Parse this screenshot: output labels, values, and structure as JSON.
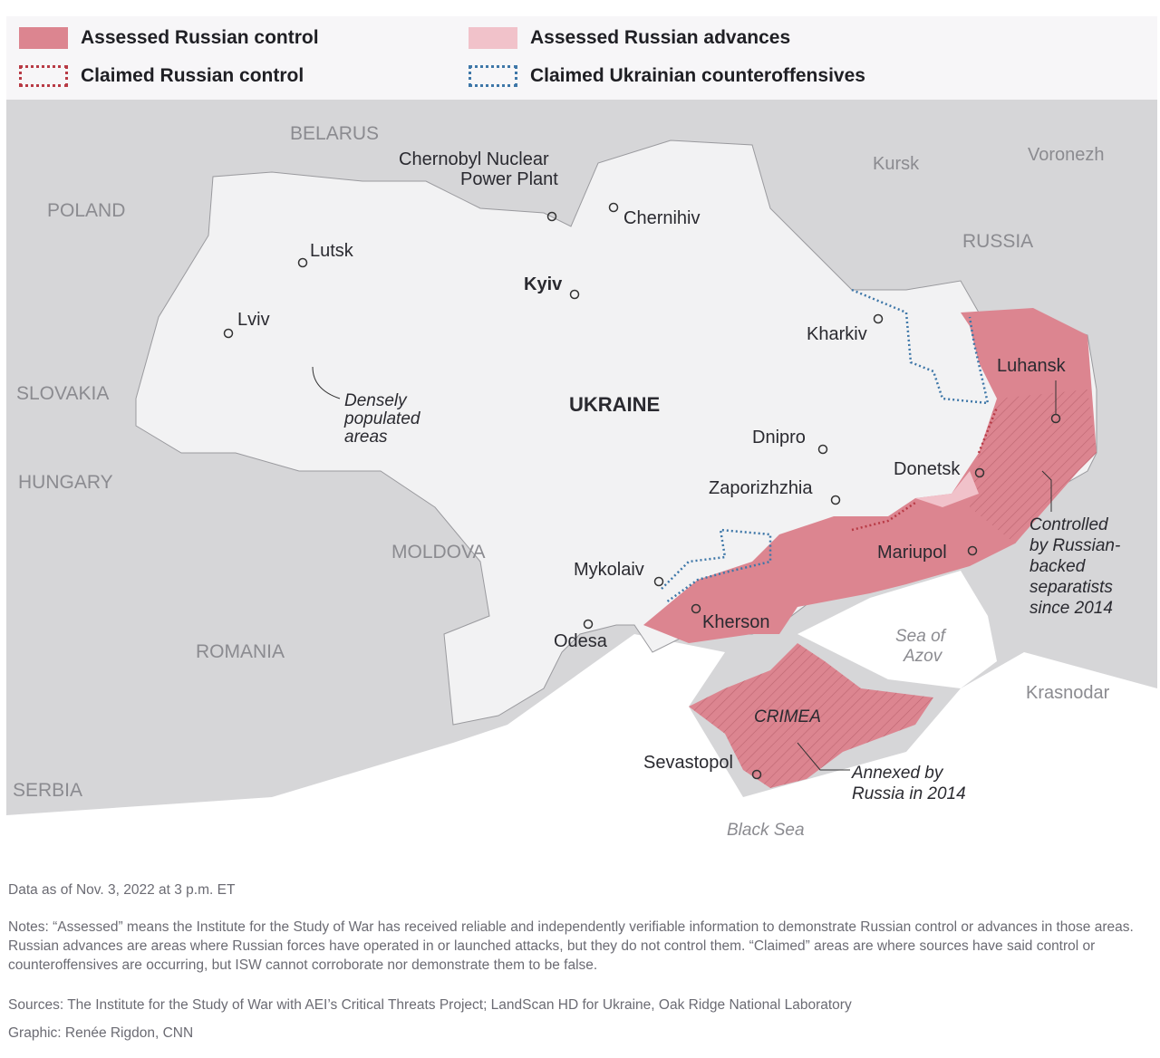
{
  "legend": [
    {
      "label": "Assessed Russian control",
      "color": "#dc8590",
      "style": "solid"
    },
    {
      "label": "Assessed Russian advances",
      "color": "#f1c2ca",
      "style": "solid"
    },
    {
      "label": "Claimed Russian control",
      "color": "#b83a45",
      "style": "dotted"
    },
    {
      "label": "Claimed Ukrainian counteroffensives",
      "color": "#3e77a8",
      "style": "dotted"
    }
  ],
  "map": {
    "countries": {
      "belarus": "BELARUS",
      "poland": "POLAND",
      "russia": "RUSSIA",
      "slovakia": "SLOVAKIA",
      "hungary": "HUNGARY",
      "moldova": "MOLDOVA",
      "romania": "ROMANIA",
      "serbia": "SERBIA",
      "ukraine": "UKRAINE"
    },
    "cities": {
      "chernobyl": "Chernobyl Nuclear",
      "chernobyl2": "Power Plant",
      "chernihiv": "Chernihiv",
      "kursk": "Kursk",
      "voronezh": "Voronezh",
      "lutsk": "Lutsk",
      "kyiv": "Kyiv",
      "lviv": "Lviv",
      "kharkiv": "Kharkiv",
      "luhansk": "Luhansk",
      "dnipro": "Dnipro",
      "donetsk": "Donetsk",
      "zaporizhzhia": "Zaporizhzhia",
      "mariupol": "Mariupol",
      "mykolaiv": "Mykolaiv",
      "kherson": "Kherson",
      "odesa": "Odesa",
      "sevastopol": "Sevastopol",
      "krasnodar": "Krasnodar"
    },
    "annotations": {
      "densely1": "Densely",
      "densely2": "populated",
      "densely3": "areas",
      "ctrl1": "Controlled",
      "ctrl2": "by Russian-",
      "ctrl3": "backed",
      "ctrl4": "separatists",
      "ctrl5": "since 2014",
      "annex1": "Annexed by",
      "annex2": "Russia in 2014",
      "crimea": "CRIMEA"
    },
    "water": {
      "azov1": "Sea of",
      "azov2": "Azov",
      "black": "Black Sea"
    }
  },
  "footer": {
    "date": "Data as of Nov. 3, 2022 at 3 p.m. ET",
    "notes": "Notes: “Assessed” means the Institute for the Study of War has received reliable and independently verifiable information to demonstrate Russian control or advances in those areas. Russian advances are areas where Russian forces have operated in or launched attacks, but they do not control them. “Claimed” areas are where sources have said control or counteroffensives are occurring, but ISW cannot corroborate nor demonstrate them to be false.",
    "sources": "Sources: The Institute for the Study of War with AEI’s Critical Threats Project; LandScan HD for Ukraine, Oak Ridge National Laboratory",
    "graphic": "Graphic: Renée Rigdon, CNN"
  }
}
